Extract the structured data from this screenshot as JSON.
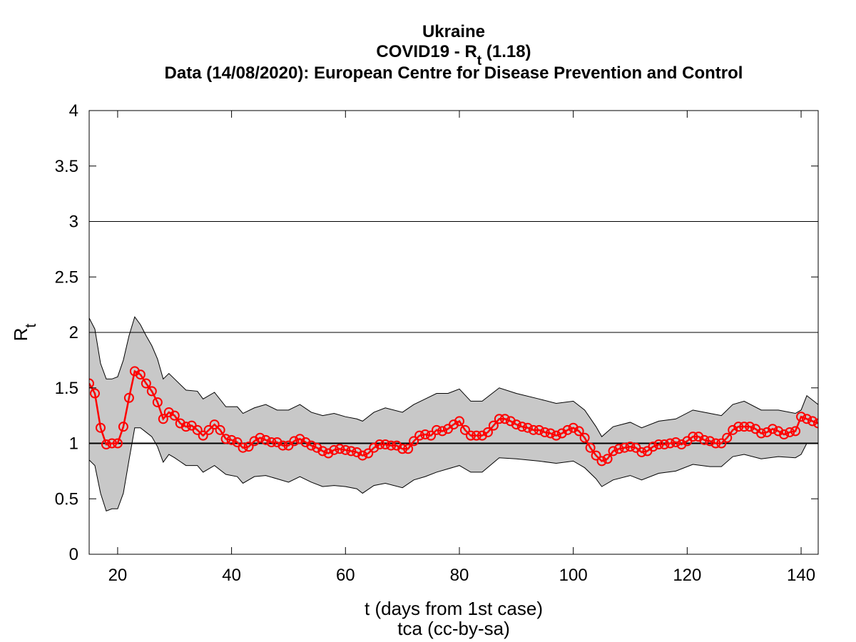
{
  "chart_data": {
    "type": "line",
    "title_lines": [
      {
        "text": "Ukraine"
      },
      {
        "text": "COVID19 - R",
        "sub": "t",
        "after": " (1.18)"
      },
      {
        "text": "Data (14/08/2020): European Centre for Disease Prevention and Control"
      }
    ],
    "y_label": {
      "text": "R",
      "sub": "t"
    },
    "x_label": "t (days from 1st case)",
    "caption": "tca (cc-by-sa)",
    "xlim": [
      15,
      143
    ],
    "ylim": [
      0,
      4
    ],
    "xticks": [
      20,
      40,
      60,
      80,
      100,
      120,
      140
    ],
    "yticks": [
      0,
      0.5,
      1,
      1.5,
      2,
      2.5,
      3,
      3.5,
      4
    ],
    "hlines": [
      1,
      2,
      3
    ],
    "series": [
      {
        "color": "#ff0000",
        "x": [
          15,
          16,
          17,
          18,
          19,
          20,
          21,
          22,
          23,
          24,
          25,
          26,
          27,
          28,
          29,
          30,
          31,
          32,
          33,
          34,
          35,
          36,
          37,
          38,
          39,
          40,
          41,
          42,
          43,
          44,
          45,
          46,
          47,
          48,
          49,
          50,
          51,
          52,
          53,
          54,
          55,
          56,
          57,
          58,
          59,
          60,
          61,
          62,
          63,
          64,
          65,
          66,
          67,
          68,
          69,
          70,
          71,
          72,
          73,
          74,
          75,
          76,
          77,
          78,
          79,
          80,
          81,
          82,
          83,
          84,
          85,
          86,
          87,
          88,
          89,
          90,
          91,
          92,
          93,
          94,
          95,
          96,
          97,
          98,
          99,
          100,
          101,
          102,
          103,
          104,
          105,
          106,
          107,
          108,
          109,
          110,
          111,
          112,
          113,
          114,
          115,
          116,
          117,
          118,
          119,
          120,
          121,
          122,
          123,
          124,
          125,
          126,
          127,
          128,
          129,
          130,
          131,
          132,
          133,
          134,
          135,
          136,
          137,
          138,
          139,
          140,
          141,
          142,
          143
        ],
        "values": [
          1.54,
          1.45,
          1.14,
          0.99,
          1.0,
          1.0,
          1.15,
          1.41,
          1.65,
          1.62,
          1.54,
          1.47,
          1.37,
          1.22,
          1.28,
          1.25,
          1.18,
          1.15,
          1.16,
          1.12,
          1.07,
          1.12,
          1.17,
          1.12,
          1.04,
          1.03,
          1.01,
          0.96,
          0.97,
          1.02,
          1.05,
          1.03,
          1.01,
          1.01,
          0.98,
          0.98,
          1.02,
          1.04,
          1.01,
          0.98,
          0.96,
          0.93,
          0.91,
          0.94,
          0.95,
          0.94,
          0.93,
          0.92,
          0.89,
          0.91,
          0.96,
          0.99,
          0.99,
          0.98,
          0.98,
          0.95,
          0.95,
          1.02,
          1.07,
          1.08,
          1.07,
          1.12,
          1.11,
          1.13,
          1.17,
          1.2,
          1.12,
          1.07,
          1.07,
          1.07,
          1.1,
          1.16,
          1.22,
          1.22,
          1.2,
          1.17,
          1.15,
          1.14,
          1.12,
          1.12,
          1.1,
          1.09,
          1.07,
          1.09,
          1.12,
          1.14,
          1.11,
          1.05,
          0.96,
          0.89,
          0.84,
          0.86,
          0.93,
          0.95,
          0.96,
          0.97,
          0.96,
          0.92,
          0.93,
          0.97,
          0.99,
          0.99,
          1.0,
          1.01,
          0.99,
          1.02,
          1.06,
          1.06,
          1.03,
          1.02,
          1.0,
          1.0,
          1.05,
          1.12,
          1.15,
          1.15,
          1.15,
          1.13,
          1.09,
          1.1,
          1.13,
          1.11,
          1.08,
          1.1,
          1.11,
          1.24,
          1.22,
          1.2,
          1.18
        ]
      }
    ],
    "band": {
      "color": "#c8c8c8",
      "x": [
        15,
        16,
        17,
        18,
        19,
        20,
        21,
        22,
        23,
        24,
        25,
        26,
        27,
        28,
        29,
        30,
        32,
        34,
        35,
        37,
        39,
        41,
        42,
        44,
        46,
        48,
        50,
        52,
        54,
        56,
        58,
        60,
        62,
        63,
        65,
        67,
        70,
        72,
        74,
        76,
        78,
        80,
        82,
        84,
        87,
        90,
        94,
        97,
        100,
        102,
        104,
        105,
        107,
        110,
        112,
        115,
        118,
        121,
        124,
        126,
        128,
        130,
        133,
        136,
        139,
        140,
        141,
        143
      ],
      "upper": [
        2.13,
        2.03,
        1.72,
        1.58,
        1.58,
        1.6,
        1.75,
        1.97,
        2.14,
        2.07,
        1.97,
        1.88,
        1.76,
        1.58,
        1.63,
        1.58,
        1.48,
        1.47,
        1.4,
        1.46,
        1.33,
        1.33,
        1.27,
        1.32,
        1.35,
        1.3,
        1.3,
        1.35,
        1.28,
        1.25,
        1.27,
        1.24,
        1.22,
        1.2,
        1.28,
        1.32,
        1.28,
        1.35,
        1.4,
        1.45,
        1.45,
        1.49,
        1.38,
        1.38,
        1.5,
        1.45,
        1.4,
        1.36,
        1.38,
        1.3,
        1.15,
        1.06,
        1.15,
        1.19,
        1.14,
        1.2,
        1.22,
        1.3,
        1.27,
        1.25,
        1.35,
        1.38,
        1.3,
        1.3,
        1.27,
        1.3,
        1.43,
        1.35
      ],
      "lower": [
        0.85,
        0.8,
        0.55,
        0.39,
        0.41,
        0.41,
        0.55,
        0.85,
        1.14,
        1.14,
        1.1,
        1.06,
        0.97,
        0.83,
        0.9,
        0.87,
        0.8,
        0.8,
        0.74,
        0.8,
        0.72,
        0.7,
        0.64,
        0.7,
        0.71,
        0.68,
        0.65,
        0.7,
        0.65,
        0.61,
        0.62,
        0.61,
        0.59,
        0.55,
        0.62,
        0.64,
        0.6,
        0.67,
        0.7,
        0.74,
        0.77,
        0.8,
        0.74,
        0.74,
        0.87,
        0.86,
        0.84,
        0.82,
        0.84,
        0.78,
        0.68,
        0.61,
        0.67,
        0.71,
        0.67,
        0.73,
        0.75,
        0.81,
        0.79,
        0.79,
        0.88,
        0.9,
        0.86,
        0.88,
        0.87,
        0.9,
        1.0,
        1.0
      ]
    }
  }
}
